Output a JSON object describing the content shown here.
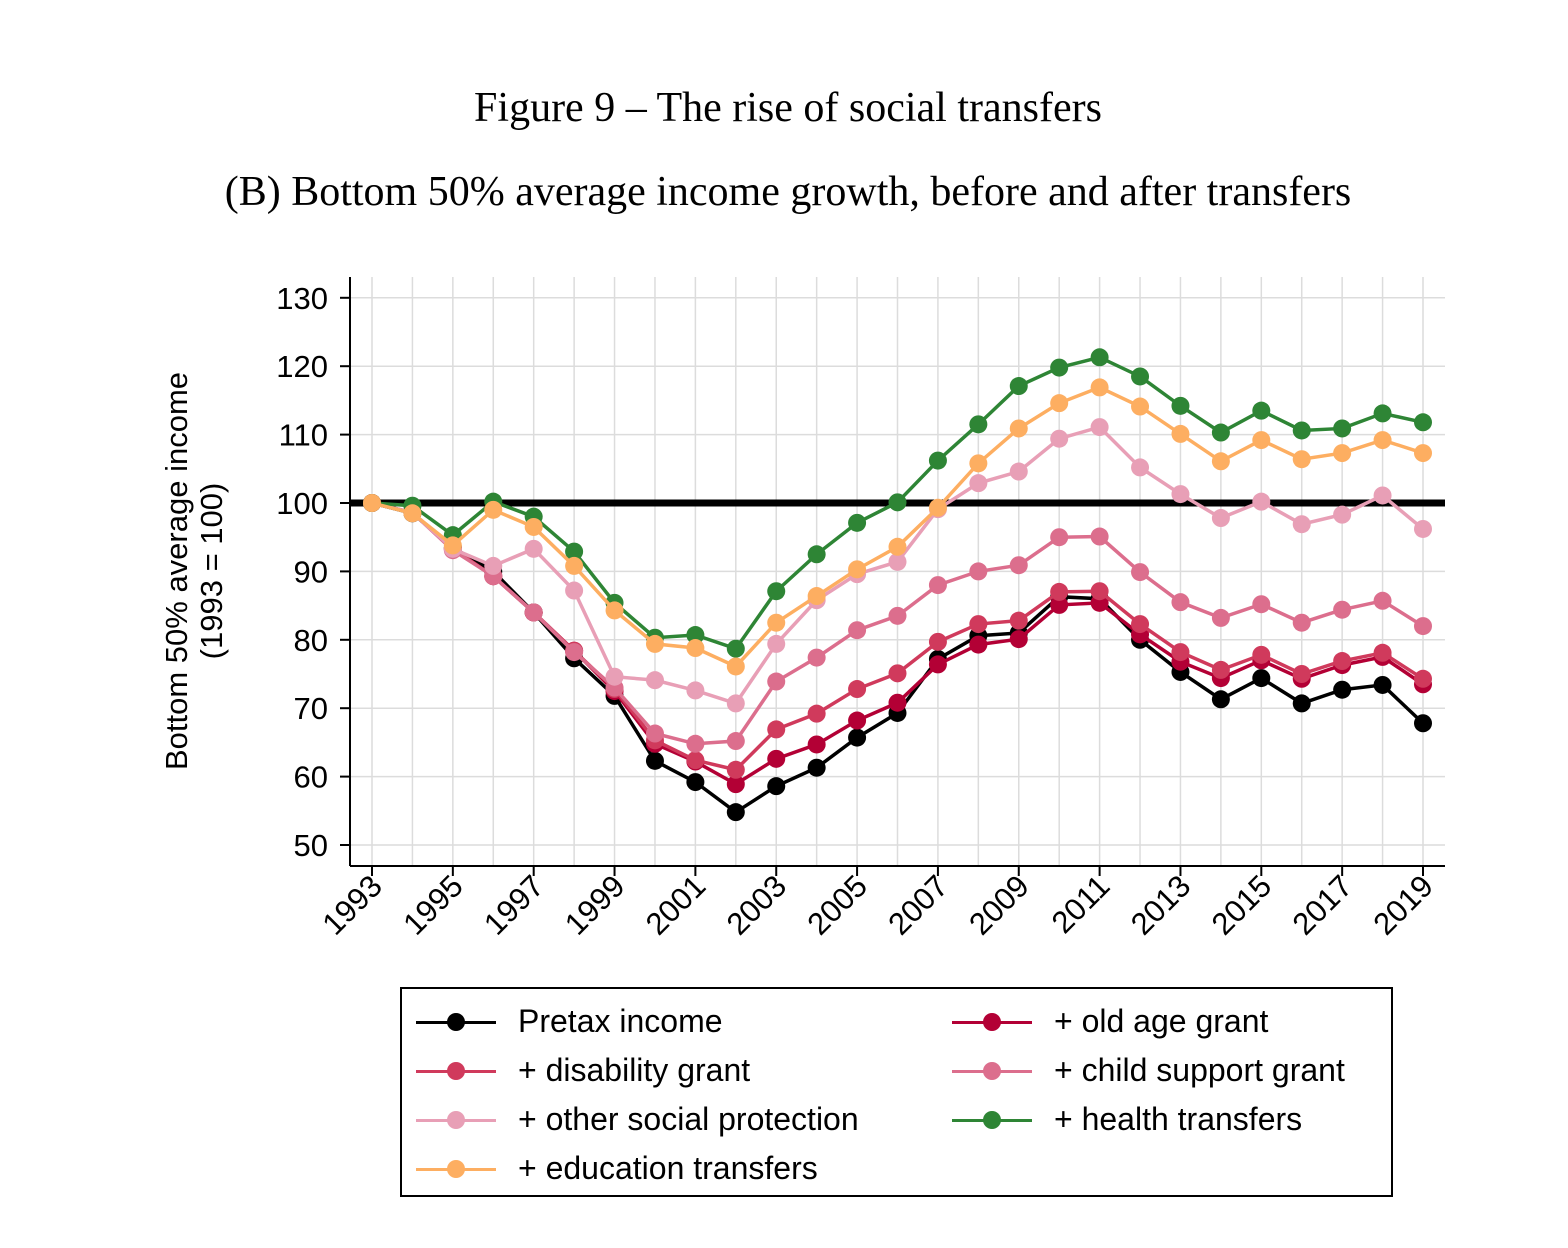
{
  "chart_data": {
    "type": "line",
    "title": "Figure 9 – The rise of social transfers",
    "subtitle": "(B) Bottom 50% average income growth, before and after transfers",
    "xlabel": "",
    "ylabel": "Bottom 50% average income",
    "ylabel2": "(1993 = 100)",
    "ylim": [
      47,
      133
    ],
    "yticks": [
      50,
      60,
      70,
      80,
      90,
      100,
      110,
      120,
      130
    ],
    "xticks": [
      1993,
      1995,
      1997,
      1999,
      2001,
      2003,
      2005,
      2007,
      2009,
      2011,
      2013,
      2015,
      2017,
      2019
    ],
    "reference_line": 100,
    "grid": true,
    "legend_position": "bottom",
    "x": [
      1993,
      1994,
      1995,
      1996,
      1997,
      1998,
      1999,
      2000,
      2001,
      2002,
      2003,
      2004,
      2005,
      2006,
      2007,
      2008,
      2009,
      2010,
      2011,
      2012,
      2013,
      2014,
      2015,
      2016,
      2017,
      2018,
      2019
    ],
    "series": [
      {
        "name": "Pretax income",
        "color": "#000000",
        "values": [
          100,
          98.5,
          93.5,
          90,
          84,
          77.3,
          71.8,
          62.3,
          59.2,
          54.8,
          58.6,
          61.3,
          65.7,
          69.3,
          77.2,
          80.6,
          81.0,
          86.3,
          86.0,
          80.0,
          75.3,
          71.3,
          74.4,
          70.7,
          72.7,
          73.4,
          67.8
        ]
      },
      {
        "name": "+ old age grant",
        "color": "#b30035",
        "values": [
          100,
          98.6,
          93.3,
          89.3,
          84,
          78.4,
          72.5,
          64.8,
          62.2,
          58.9,
          62.6,
          64.7,
          68.2,
          70.8,
          76.4,
          79.3,
          80.1,
          85.1,
          85.4,
          80.8,
          76.8,
          74.4,
          77.0,
          74.3,
          76.3,
          77.5,
          73.5
        ]
      },
      {
        "name": "+ disability grant",
        "color": "#d03a5c",
        "values": [
          100,
          98.6,
          93.3,
          89.3,
          84,
          78.4,
          72.8,
          65.3,
          62.4,
          61.0,
          66.9,
          69.2,
          72.8,
          75.1,
          79.7,
          82.3,
          82.8,
          87.0,
          87.1,
          82.3,
          78.2,
          75.6,
          77.8,
          75.0,
          76.9,
          78.1,
          74.3
        ]
      },
      {
        "name": "+ child support grant",
        "color": "#dc6e8d",
        "values": [
          100,
          98.6,
          93.1,
          89.3,
          84,
          78.2,
          73.0,
          66.3,
          64.8,
          65.2,
          73.9,
          77.4,
          81.4,
          83.5,
          88.0,
          90.0,
          90.9,
          95.0,
          95.1,
          89.9,
          85.5,
          83.2,
          85.2,
          82.5,
          84.4,
          85.7,
          82.0
        ]
      },
      {
        "name": "+ other social protection",
        "color": "#e89fb6",
        "values": [
          100,
          98.6,
          93.3,
          90.8,
          93.3,
          87.2,
          74.6,
          74.1,
          72.6,
          70.7,
          79.4,
          85.8,
          89.6,
          91.4,
          99.1,
          102.9,
          104.6,
          109.4,
          111.1,
          105.2,
          101.3,
          97.8,
          100.2,
          96.9,
          98.3,
          101.1,
          96.2
        ]
      },
      {
        "name": "+ health transfers",
        "color": "#2e8535",
        "values": [
          100,
          99.6,
          95.3,
          100.2,
          98.0,
          92.9,
          85.4,
          80.3,
          80.7,
          78.7,
          87.1,
          92.5,
          97.1,
          100.1,
          106.2,
          111.5,
          117.1,
          119.8,
          121.3,
          118.5,
          114.2,
          110.3,
          113.5,
          110.6,
          110.9,
          113.1,
          111.8
        ]
      },
      {
        "name": "+ education transfers",
        "color": "#fdae61",
        "values": [
          100,
          98.5,
          93.8,
          99.0,
          96.5,
          90.8,
          84.3,
          79.4,
          78.8,
          76.1,
          82.5,
          86.4,
          90.3,
          93.6,
          99.3,
          105.8,
          110.9,
          114.6,
          116.9,
          114.1,
          110.1,
          106.1,
          109.2,
          106.4,
          107.3,
          109.2,
          107.3
        ]
      }
    ],
    "legend_order": [
      0,
      1,
      2,
      3,
      4,
      5,
      6
    ]
  }
}
